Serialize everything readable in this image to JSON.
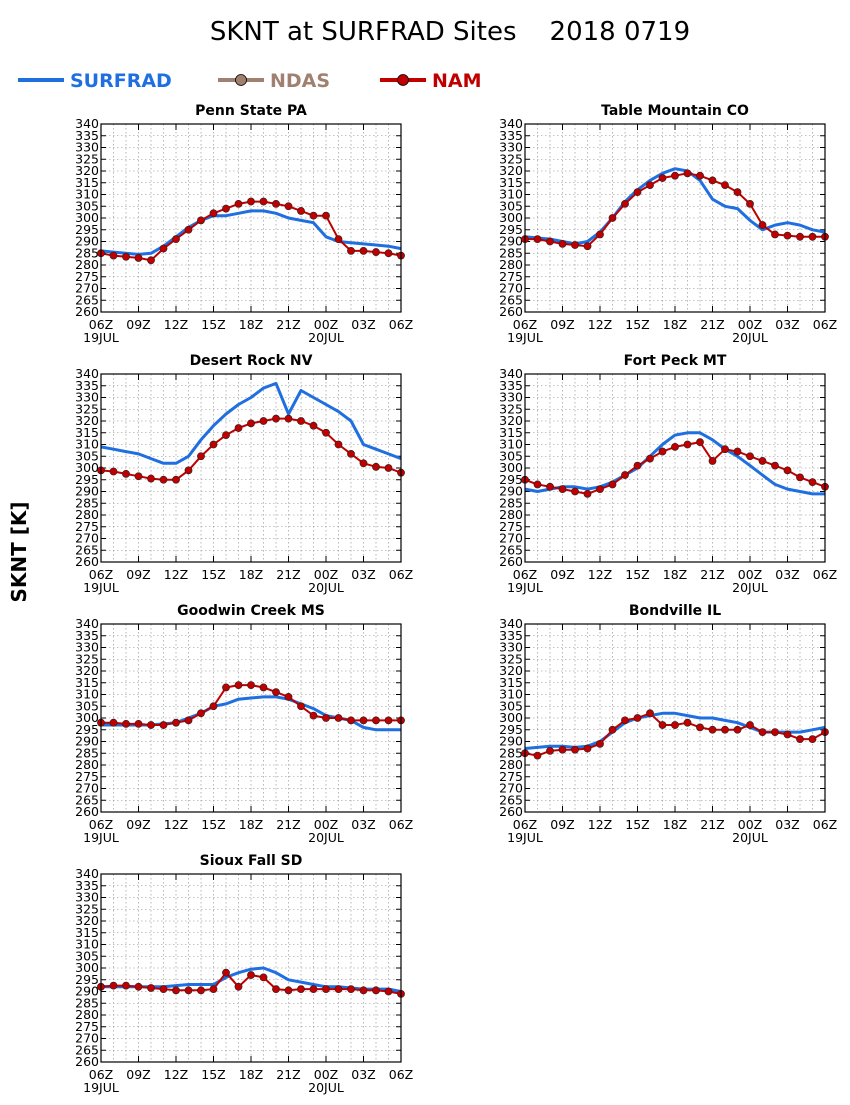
{
  "title": "SKNT at SURFRAD Sites    2018 0719",
  "ylabel": "SKNT [K]",
  "legend": [
    {
      "name": "SURFRAD",
      "color": "#1f6fe0",
      "marker": false
    },
    {
      "name": "NDAS",
      "color": "#a08070",
      "marker": true
    },
    {
      "name": "NAM",
      "color": "#c00000",
      "marker": true
    }
  ],
  "x_tick_labels": [
    "06Z",
    "09Z",
    "12Z",
    "15Z",
    "18Z",
    "21Z",
    "00Z",
    "03Z",
    "06Z"
  ],
  "x_date_labels": [
    {
      "hour": 0,
      "label": "19JUL"
    },
    {
      "hour": 18,
      "label": "20JUL"
    }
  ],
  "y_tick_labels": [
    "260",
    "265",
    "270",
    "275",
    "280",
    "285",
    "290",
    "295",
    "300",
    "305",
    "310",
    "315",
    "320",
    "325",
    "330",
    "335",
    "340"
  ],
  "chart_data": [
    {
      "type": "line",
      "title": "Penn State PA",
      "xlim": [
        0,
        24
      ],
      "ylim": [
        260,
        340
      ],
      "series": [
        {
          "name": "SURFRAD",
          "x": [
            0,
            1,
            2,
            3,
            4,
            5,
            6,
            7,
            8,
            9,
            10,
            11,
            12,
            13,
            14,
            15,
            16,
            17,
            18,
            19,
            20,
            21,
            22,
            23,
            24
          ],
          "y": [
            286,
            285.5,
            285,
            284.5,
            285,
            288,
            292,
            296,
            299,
            301,
            301,
            302,
            303,
            303,
            302,
            300,
            299,
            298,
            292,
            290,
            289.5,
            289,
            288.5,
            288,
            287
          ]
        },
        {
          "name": "NAM",
          "x": [
            0,
            1,
            2,
            3,
            4,
            5,
            6,
            7,
            8,
            9,
            10,
            11,
            12,
            13,
            14,
            15,
            16,
            17,
            18,
            19,
            20,
            21,
            22,
            23,
            24
          ],
          "y": [
            285,
            284,
            283.5,
            283,
            282,
            287,
            291,
            295,
            299,
            302,
            304,
            306,
            307,
            307,
            306,
            305,
            303,
            301,
            301,
            291,
            286,
            286,
            285.5,
            285,
            284
          ]
        }
      ]
    },
    {
      "type": "line",
      "title": "Table Mountain CO",
      "xlim": [
        0,
        24
      ],
      "ylim": [
        260,
        340
      ],
      "series": [
        {
          "name": "SURFRAD",
          "x": [
            0,
            1,
            2,
            3,
            4,
            5,
            6,
            7,
            8,
            9,
            10,
            11,
            12,
            13,
            14,
            15,
            16,
            17,
            18,
            19,
            20,
            21,
            22,
            23,
            24
          ],
          "y": [
            292,
            291.5,
            291,
            290,
            289,
            290,
            294,
            300,
            307,
            312,
            316,
            319,
            321,
            320,
            316,
            308,
            305,
            304,
            299,
            295,
            297,
            298,
            297,
            295,
            294
          ]
        },
        {
          "name": "NAM",
          "x": [
            0,
            1,
            2,
            3,
            4,
            5,
            6,
            7,
            8,
            9,
            10,
            11,
            12,
            13,
            14,
            15,
            16,
            17,
            18,
            19,
            20,
            21,
            22,
            23,
            24
          ],
          "y": [
            291,
            291,
            290,
            289,
            288.5,
            288,
            293,
            300,
            306,
            311,
            314,
            317,
            318,
            319,
            318,
            316,
            314,
            311,
            306,
            297,
            293,
            292.5,
            292,
            292,
            292
          ]
        }
      ]
    },
    {
      "type": "line",
      "title": "Desert Rock NV",
      "xlim": [
        0,
        24
      ],
      "ylim": [
        260,
        340
      ],
      "series": [
        {
          "name": "SURFRAD",
          "x": [
            0,
            1,
            2,
            3,
            4,
            5,
            6,
            7,
            8,
            9,
            10,
            11,
            12,
            13,
            14,
            15,
            16,
            17,
            18,
            19,
            20,
            21,
            22,
            23,
            24
          ],
          "y": [
            309,
            308,
            307,
            306,
            304,
            302,
            302,
            305,
            312,
            318,
            323,
            327,
            330,
            334,
            336,
            323,
            333,
            330,
            327,
            324,
            320,
            310,
            308,
            306,
            304
          ]
        },
        {
          "name": "NAM",
          "x": [
            0,
            1,
            2,
            3,
            4,
            5,
            6,
            7,
            8,
            9,
            10,
            11,
            12,
            13,
            14,
            15,
            16,
            17,
            18,
            19,
            20,
            21,
            22,
            23,
            24
          ],
          "y": [
            299,
            298.5,
            297.5,
            296.5,
            295.5,
            295,
            295,
            299,
            305,
            310,
            314,
            317,
            319,
            320,
            321,
            321,
            320,
            318,
            315,
            310,
            306,
            302,
            300.5,
            300,
            298
          ]
        }
      ]
    },
    {
      "type": "line",
      "title": "Fort Peck MT",
      "xlim": [
        0,
        24
      ],
      "ylim": [
        260,
        340
      ],
      "series": [
        {
          "name": "SURFRAD",
          "x": [
            0,
            1,
            2,
            3,
            4,
            5,
            6,
            7,
            8,
            9,
            10,
            11,
            12,
            13,
            14,
            15,
            16,
            17,
            18,
            19,
            20,
            21,
            22,
            23,
            24
          ],
          "y": [
            291,
            290,
            291,
            292,
            292,
            291,
            292,
            294,
            297,
            300,
            305,
            310,
            314,
            315,
            315,
            312,
            308,
            305,
            301,
            297,
            293,
            291,
            290,
            289,
            289
          ]
        },
        {
          "name": "NAM",
          "x": [
            0,
            1,
            2,
            3,
            4,
            5,
            6,
            7,
            8,
            9,
            10,
            11,
            12,
            13,
            14,
            15,
            16,
            17,
            18,
            19,
            20,
            21,
            22,
            23,
            24
          ],
          "y": [
            295,
            293,
            292,
            291,
            290,
            289,
            291,
            293,
            297,
            301,
            304,
            307,
            309,
            310,
            311,
            303,
            308,
            307,
            305,
            303,
            301,
            299,
            296,
            294,
            292
          ]
        }
      ]
    },
    {
      "type": "line",
      "title": "Goodwin Creek MS",
      "xlim": [
        0,
        24
      ],
      "ylim": [
        260,
        340
      ],
      "series": [
        {
          "name": "SURFRAD",
          "x": [
            0,
            1,
            2,
            3,
            4,
            5,
            6,
            7,
            8,
            9,
            10,
            11,
            12,
            13,
            14,
            15,
            16,
            17,
            18,
            19,
            20,
            21,
            22,
            23,
            24
          ],
          "y": [
            297,
            297,
            297,
            297,
            297,
            297.5,
            298,
            300,
            302,
            305,
            306,
            308,
            308.5,
            309,
            309,
            308,
            306,
            304,
            301,
            300,
            299,
            296,
            295,
            295,
            295
          ]
        },
        {
          "name": "NAM",
          "x": [
            0,
            1,
            2,
            3,
            4,
            5,
            6,
            7,
            8,
            9,
            10,
            11,
            12,
            13,
            14,
            15,
            16,
            17,
            18,
            19,
            20,
            21,
            22,
            23,
            24
          ],
          "y": [
            298,
            298,
            297.5,
            297.5,
            297,
            297,
            298,
            299,
            302,
            305,
            313,
            314,
            314,
            313,
            311,
            309,
            305,
            301,
            300,
            300,
            299,
            299,
            299,
            299,
            299
          ]
        }
      ]
    },
    {
      "type": "line",
      "title": "Bondville IL",
      "xlim": [
        0,
        24
      ],
      "ylim": [
        260,
        340
      ],
      "series": [
        {
          "name": "SURFRAD",
          "x": [
            0,
            1,
            2,
            3,
            4,
            5,
            6,
            7,
            8,
            9,
            10,
            11,
            12,
            13,
            14,
            15,
            16,
            17,
            18,
            19,
            20,
            21,
            22,
            23,
            24
          ],
          "y": [
            287,
            287.5,
            288,
            288,
            287.5,
            288,
            290,
            294,
            298,
            300,
            301,
            302,
            302,
            301,
            300,
            300,
            299,
            298,
            296,
            294,
            294,
            294,
            294,
            295,
            296
          ]
        },
        {
          "name": "NAM",
          "x": [
            0,
            1,
            2,
            3,
            4,
            5,
            6,
            7,
            8,
            9,
            10,
            11,
            12,
            13,
            14,
            15,
            16,
            17,
            18,
            19,
            20,
            21,
            22,
            23,
            24
          ],
          "y": [
            285,
            284,
            286,
            286.5,
            286.5,
            287,
            289,
            295,
            299,
            300,
            302,
            297,
            297,
            298,
            296,
            295,
            295,
            295,
            297,
            294,
            294,
            293,
            291,
            291,
            294
          ]
        }
      ]
    },
    {
      "type": "line",
      "title": "Sioux Fall SD",
      "xlim": [
        0,
        24
      ],
      "ylim": [
        260,
        340
      ],
      "series": [
        {
          "name": "SURFRAD",
          "x": [
            0,
            1,
            2,
            3,
            4,
            5,
            6,
            7,
            8,
            9,
            10,
            11,
            12,
            13,
            14,
            15,
            16,
            17,
            18,
            19,
            20,
            21,
            22,
            23,
            24
          ],
          "y": [
            292,
            292,
            292,
            292,
            292,
            292,
            292.5,
            293,
            293,
            293,
            296,
            298,
            299.5,
            300,
            298,
            295,
            294,
            293,
            292,
            292,
            291.5,
            291,
            291,
            291,
            290
          ]
        },
        {
          "name": "NAM",
          "x": [
            0,
            1,
            2,
            3,
            4,
            5,
            6,
            7,
            8,
            9,
            10,
            11,
            12,
            13,
            14,
            15,
            16,
            17,
            18,
            19,
            20,
            21,
            22,
            23,
            24
          ],
          "y": [
            292,
            292.5,
            292.5,
            292,
            291.5,
            291,
            290.5,
            290.5,
            290.5,
            291,
            298,
            292,
            297,
            296,
            291,
            290.5,
            291,
            291,
            291,
            291,
            291,
            290.5,
            290.5,
            290,
            289
          ]
        }
      ]
    }
  ]
}
